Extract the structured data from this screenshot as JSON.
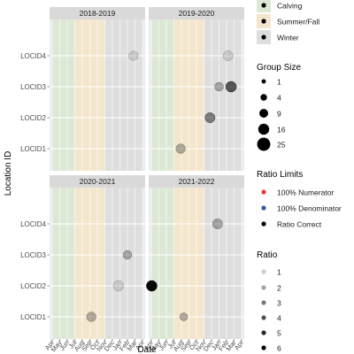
{
  "chart_data": {
    "type": "scatter",
    "title": "",
    "xlabel": "Date",
    "ylabel": "Location ID",
    "facet_variable": "season",
    "facets": [
      "2018-2019",
      "2019-2020",
      "2020-2021",
      "2021-2022"
    ],
    "months": [
      "Apr",
      "May",
      "Jun",
      "Jul",
      "Aug",
      "Sep",
      "Oct",
      "Nov",
      "Dec",
      "Jan",
      "Feb",
      "Mar",
      "Apr"
    ],
    "locations": [
      "LOCID1",
      "LOCID2",
      "LOCID3",
      "LOCID4"
    ],
    "period_bands": [
      {
        "name": "Calving",
        "color": "#dce8d5",
        "start": 0,
        "end": 3
      },
      {
        "name": "Summer/Fall",
        "color": "#f4e6cc",
        "start": 3,
        "end": 7
      },
      {
        "name": "Winter",
        "color": "#dedede",
        "start": 7,
        "end": 12
      }
    ],
    "points": [
      {
        "facet": "2018-2019",
        "month": 10.8,
        "location": "LOCID4",
        "group_size": 4,
        "ratio": 1
      },
      {
        "facet": "2019-2020",
        "month": 3.9,
        "location": "LOCID1",
        "group_size": 4,
        "ratio": 2
      },
      {
        "facet": "2019-2020",
        "month": 7.8,
        "location": "LOCID2",
        "group_size": 5,
        "ratio": 3
      },
      {
        "facet": "2019-2020",
        "month": 9.0,
        "location": "LOCID3",
        "group_size": 3,
        "ratio": 2
      },
      {
        "facet": "2019-2020",
        "month": 10.6,
        "location": "LOCID3",
        "group_size": 6,
        "ratio": 4
      },
      {
        "facet": "2019-2020",
        "month": 10.2,
        "location": "LOCID4",
        "group_size": 5,
        "ratio": 1
      },
      {
        "facet": "2020-2021",
        "month": 5.2,
        "location": "LOCID1",
        "group_size": 4,
        "ratio": 2
      },
      {
        "facet": "2020-2021",
        "month": 8.8,
        "location": "LOCID2",
        "group_size": 6,
        "ratio": 1
      },
      {
        "facet": "2020-2021",
        "month": 10.0,
        "location": "LOCID3",
        "group_size": 3,
        "ratio": 2
      },
      {
        "facet": "2021-2022",
        "month": 0.05,
        "location": "LOCID2",
        "group_size": 6,
        "ratio": 6
      },
      {
        "facet": "2021-2022",
        "month": 4.3,
        "location": "LOCID1",
        "group_size": 2,
        "ratio": 2
      },
      {
        "facet": "2021-2022",
        "month": 8.8,
        "location": "LOCID4",
        "group_size": 5,
        "ratio": 2
      }
    ],
    "legends": {
      "period": {
        "title": "",
        "entries": [
          "Calving",
          "Summer/Fall",
          "Winter"
        ]
      },
      "group_size": {
        "title": "Group Size",
        "entries": [
          "1",
          "4",
          "9",
          "16",
          "25"
        ]
      },
      "ratio_limits": {
        "title": "Ratio Limits",
        "entries": [
          {
            "label": "100% Numerator",
            "color": "#e8392f"
          },
          {
            "label": "100% Denominator",
            "color": "#2a5ea8"
          },
          {
            "label": "Ratio Correct",
            "color": "#000000"
          }
        ]
      },
      "ratio": {
        "title": "Ratio",
        "entries": [
          "1",
          "2",
          "3",
          "4",
          "5",
          "6"
        ]
      }
    },
    "grid": true,
    "legend_position": "right"
  },
  "colors": {
    "panel_bg": "#ebebeb",
    "strip_bg": "#d9d9d9",
    "gridline": "#ffffff",
    "point": "#000000"
  }
}
